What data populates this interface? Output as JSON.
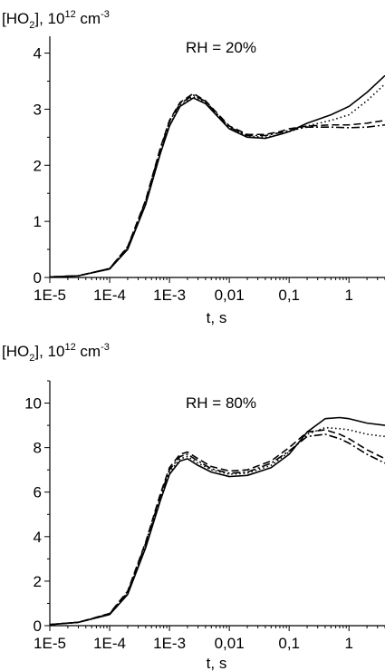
{
  "chart_data": [
    {
      "type": "line",
      "title": "",
      "annotation": "RH = 20%",
      "ylabel": "[HO2], 10^12 cm^-3",
      "ylabel_parts": {
        "main": "[HO",
        "sub": "2",
        "mid": "], 10",
        "sup1": "12",
        "unit": " cm",
        "sup2": "-3"
      },
      "xlabel": "t, s",
      "x_scale": "log",
      "xlim": [
        1e-05,
        4
      ],
      "ylim": [
        0,
        4.3
      ],
      "x_ticks": [
        {
          "value": 1e-05,
          "label": "1E-5"
        },
        {
          "value": 0.0001,
          "label": "1E-4"
        },
        {
          "value": 0.001,
          "label": "1E-3"
        },
        {
          "value": 0.01,
          "label": "0,01"
        },
        {
          "value": 0.1,
          "label": "0,1"
        },
        {
          "value": 1,
          "label": "1"
        }
      ],
      "y_ticks": [
        {
          "value": 0,
          "label": "0"
        },
        {
          "value": 1,
          "label": "1"
        },
        {
          "value": 2,
          "label": "2"
        },
        {
          "value": 3,
          "label": "3"
        },
        {
          "value": 4,
          "label": "4"
        }
      ],
      "series": [
        {
          "style": "solid",
          "points": [
            [
              1e-05,
              0.01
            ],
            [
              3e-05,
              0.03
            ],
            [
              0.0001,
              0.15
            ],
            [
              0.0002,
              0.5
            ],
            [
              0.0004,
              1.3
            ],
            [
              0.0007,
              2.2
            ],
            [
              0.001,
              2.7
            ],
            [
              0.0015,
              3.05
            ],
            [
              0.0025,
              3.2
            ],
            [
              0.004,
              3.1
            ],
            [
              0.006,
              2.9
            ],
            [
              0.01,
              2.65
            ],
            [
              0.02,
              2.5
            ],
            [
              0.04,
              2.48
            ],
            [
              0.07,
              2.55
            ],
            [
              0.1,
              2.6
            ],
            [
              0.2,
              2.75
            ],
            [
              0.5,
              2.9
            ],
            [
              1,
              3.05
            ],
            [
              2,
              3.3
            ],
            [
              4,
              3.6
            ]
          ]
        },
        {
          "style": "dotted",
          "points": [
            [
              1e-05,
              0.01
            ],
            [
              3e-05,
              0.03
            ],
            [
              0.0001,
              0.15
            ],
            [
              0.0002,
              0.52
            ],
            [
              0.0004,
              1.32
            ],
            [
              0.0007,
              2.22
            ],
            [
              0.001,
              2.72
            ],
            [
              0.0015,
              3.07
            ],
            [
              0.0025,
              3.22
            ],
            [
              0.004,
              3.12
            ],
            [
              0.006,
              2.92
            ],
            [
              0.01,
              2.67
            ],
            [
              0.02,
              2.52
            ],
            [
              0.04,
              2.5
            ],
            [
              0.07,
              2.55
            ],
            [
              0.1,
              2.6
            ],
            [
              0.2,
              2.7
            ],
            [
              0.5,
              2.8
            ],
            [
              1,
              2.9
            ],
            [
              2,
              3.15
            ],
            [
              4,
              3.45
            ]
          ]
        },
        {
          "style": "dashed",
          "points": [
            [
              1e-05,
              0.01
            ],
            [
              3e-05,
              0.03
            ],
            [
              0.0001,
              0.16
            ],
            [
              0.0002,
              0.55
            ],
            [
              0.0004,
              1.38
            ],
            [
              0.0007,
              2.3
            ],
            [
              0.001,
              2.8
            ],
            [
              0.0015,
              3.12
            ],
            [
              0.0025,
              3.28
            ],
            [
              0.004,
              3.15
            ],
            [
              0.006,
              2.95
            ],
            [
              0.01,
              2.7
            ],
            [
              0.02,
              2.55
            ],
            [
              0.04,
              2.55
            ],
            [
              0.07,
              2.6
            ],
            [
              0.1,
              2.65
            ],
            [
              0.2,
              2.7
            ],
            [
              0.5,
              2.72
            ],
            [
              1,
              2.72
            ],
            [
              2,
              2.75
            ],
            [
              4,
              2.8
            ]
          ]
        },
        {
          "style": "dashdot",
          "points": [
            [
              1e-05,
              0.01
            ],
            [
              3e-05,
              0.03
            ],
            [
              0.0001,
              0.16
            ],
            [
              0.0002,
              0.54
            ],
            [
              0.0004,
              1.36
            ],
            [
              0.0007,
              2.28
            ],
            [
              0.001,
              2.78
            ],
            [
              0.0015,
              3.1
            ],
            [
              0.0025,
              3.25
            ],
            [
              0.004,
              3.14
            ],
            [
              0.006,
              2.93
            ],
            [
              0.01,
              2.68
            ],
            [
              0.02,
              2.53
            ],
            [
              0.04,
              2.53
            ],
            [
              0.07,
              2.58
            ],
            [
              0.1,
              2.62
            ],
            [
              0.2,
              2.68
            ],
            [
              0.5,
              2.68
            ],
            [
              1,
              2.67
            ],
            [
              2,
              2.68
            ],
            [
              4,
              2.72
            ]
          ]
        }
      ]
    },
    {
      "type": "line",
      "title": "",
      "annotation": "RH = 80%",
      "ylabel": "[HO2], 10^12 cm^-3",
      "ylabel_parts": {
        "main": "[HO",
        "sub": "2",
        "mid": "], 10",
        "sup1": "12",
        "unit": " cm",
        "sup2": "-3"
      },
      "xlabel": "t, s",
      "x_scale": "log",
      "xlim": [
        1e-05,
        4
      ],
      "ylim": [
        0,
        11
      ],
      "x_ticks": [
        {
          "value": 1e-05,
          "label": "1E-5"
        },
        {
          "value": 0.0001,
          "label": "1E-4"
        },
        {
          "value": 0.001,
          "label": "1E-3"
        },
        {
          "value": 0.01,
          "label": "0,01"
        },
        {
          "value": 0.1,
          "label": "0,1"
        },
        {
          "value": 1,
          "label": "1"
        }
      ],
      "y_ticks": [
        {
          "value": 0,
          "label": "0"
        },
        {
          "value": 2,
          "label": "2"
        },
        {
          "value": 4,
          "label": "4"
        },
        {
          "value": 6,
          "label": "6"
        },
        {
          "value": 8,
          "label": "8"
        },
        {
          "value": 10,
          "label": "10"
        }
      ],
      "series": [
        {
          "style": "solid",
          "points": [
            [
              1e-05,
              0.05
            ],
            [
              3e-05,
              0.15
            ],
            [
              0.0001,
              0.5
            ],
            [
              0.0002,
              1.4
            ],
            [
              0.0004,
              3.5
            ],
            [
              0.0007,
              5.6
            ],
            [
              0.001,
              6.8
            ],
            [
              0.0015,
              7.4
            ],
            [
              0.002,
              7.5
            ],
            [
              0.003,
              7.2
            ],
            [
              0.005,
              6.9
            ],
            [
              0.01,
              6.7
            ],
            [
              0.02,
              6.75
            ],
            [
              0.05,
              7.1
            ],
            [
              0.1,
              7.7
            ],
            [
              0.2,
              8.7
            ],
            [
              0.4,
              9.3
            ],
            [
              0.7,
              9.35
            ],
            [
              1,
              9.3
            ],
            [
              2,
              9.1
            ],
            [
              4,
              9.0
            ]
          ]
        },
        {
          "style": "dotted",
          "points": [
            [
              1e-05,
              0.05
            ],
            [
              3e-05,
              0.15
            ],
            [
              0.0001,
              0.5
            ],
            [
              0.0002,
              1.45
            ],
            [
              0.0004,
              3.6
            ],
            [
              0.0007,
              5.7
            ],
            [
              0.001,
              6.9
            ],
            [
              0.0015,
              7.5
            ],
            [
              0.002,
              7.6
            ],
            [
              0.003,
              7.3
            ],
            [
              0.005,
              7.0
            ],
            [
              0.01,
              6.8
            ],
            [
              0.02,
              6.85
            ],
            [
              0.05,
              7.2
            ],
            [
              0.1,
              7.8
            ],
            [
              0.2,
              8.6
            ],
            [
              0.4,
              8.9
            ],
            [
              0.7,
              8.85
            ],
            [
              1,
              8.8
            ],
            [
              2,
              8.6
            ],
            [
              4,
              8.5
            ]
          ]
        },
        {
          "style": "dashed",
          "points": [
            [
              1e-05,
              0.05
            ],
            [
              3e-05,
              0.15
            ],
            [
              0.0001,
              0.55
            ],
            [
              0.0002,
              1.55
            ],
            [
              0.0004,
              3.75
            ],
            [
              0.0007,
              5.9
            ],
            [
              0.001,
              7.1
            ],
            [
              0.0015,
              7.7
            ],
            [
              0.002,
              7.8
            ],
            [
              0.003,
              7.5
            ],
            [
              0.005,
              7.15
            ],
            [
              0.01,
              6.95
            ],
            [
              0.02,
              7.0
            ],
            [
              0.05,
              7.4
            ],
            [
              0.1,
              8.0
            ],
            [
              0.2,
              8.7
            ],
            [
              0.4,
              8.8
            ],
            [
              0.7,
              8.6
            ],
            [
              1,
              8.4
            ],
            [
              2,
              7.9
            ],
            [
              4,
              7.5
            ]
          ]
        },
        {
          "style": "dashdot",
          "points": [
            [
              1e-05,
              0.05
            ],
            [
              3e-05,
              0.15
            ],
            [
              0.0001,
              0.53
            ],
            [
              0.0002,
              1.5
            ],
            [
              0.0004,
              3.7
            ],
            [
              0.0007,
              5.8
            ],
            [
              0.001,
              7.0
            ],
            [
              0.0015,
              7.6
            ],
            [
              0.002,
              7.7
            ],
            [
              0.003,
              7.4
            ],
            [
              0.005,
              7.05
            ],
            [
              0.01,
              6.85
            ],
            [
              0.02,
              6.9
            ],
            [
              0.05,
              7.3
            ],
            [
              0.1,
              7.85
            ],
            [
              0.2,
              8.5
            ],
            [
              0.4,
              8.6
            ],
            [
              0.7,
              8.4
            ],
            [
              1,
              8.2
            ],
            [
              2,
              7.7
            ],
            [
              4,
              7.3
            ]
          ]
        }
      ]
    }
  ]
}
